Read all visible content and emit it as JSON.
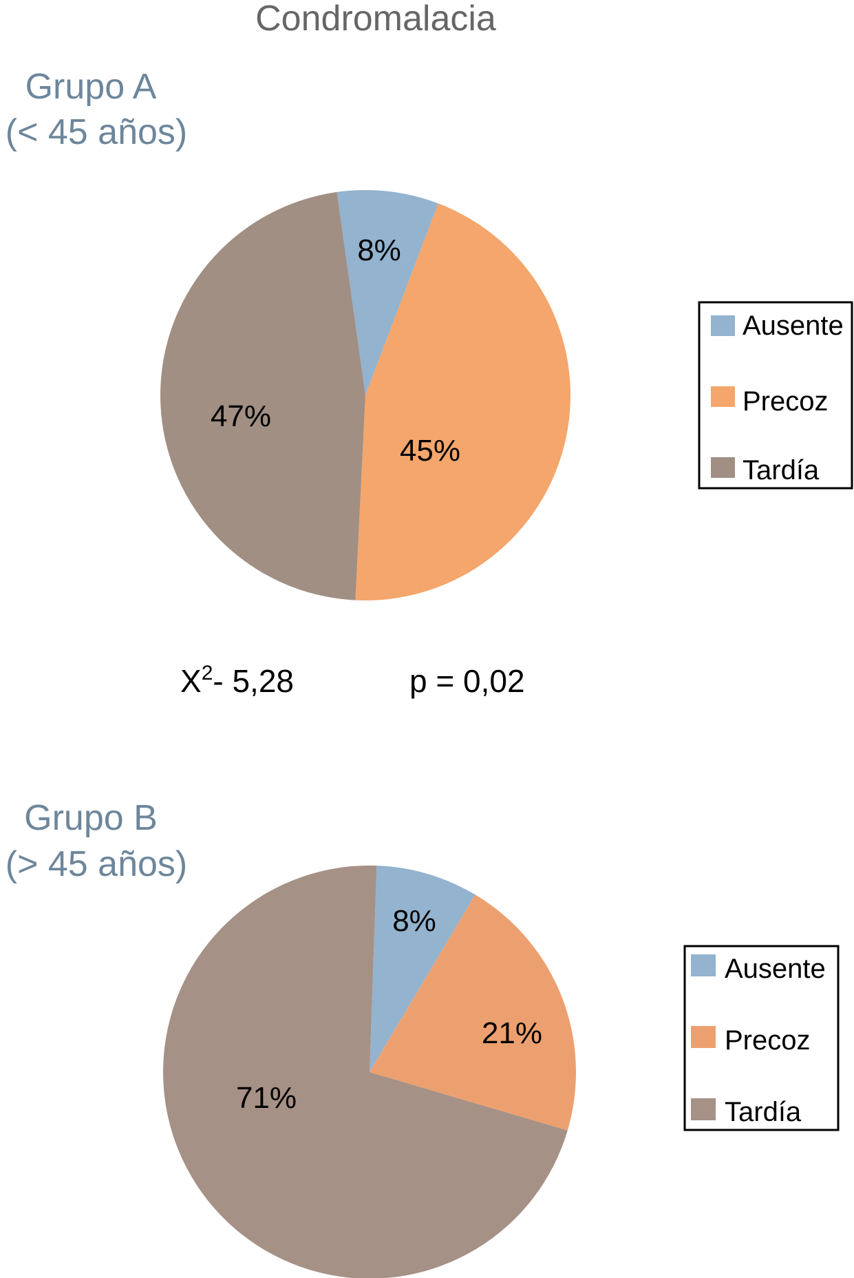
{
  "title": "Condromalacia",
  "colors": {
    "title": "#666666",
    "group_label": "#6d869b",
    "text": "#000000",
    "ausente": "#93b3cf",
    "precoz": "#f4a66c",
    "precoz_b": "#eda06f",
    "tardia": "#a18f83",
    "tardia_b": "#a69186"
  },
  "stats": {
    "chi_prefix": "X",
    "chi_sup": "2",
    "chi_value": "- 5,28",
    "p_value": "p = 0,02"
  },
  "chart_data": [
    {
      "type": "pie",
      "group_label": "Grupo A",
      "group_sub": "(< 45 años)",
      "legend_placement": "right",
      "categories": [
        "Ausente",
        "Precoz",
        "Tardía"
      ],
      "values": [
        8,
        45,
        47
      ],
      "labels": [
        "8%",
        "45%",
        "47%"
      ],
      "colors": [
        "#93b3cf",
        "#f4a66c",
        "#a18f83"
      ]
    },
    {
      "type": "pie",
      "group_label": "Grupo B",
      "group_sub": "(> 45 años)",
      "legend_placement": "right",
      "categories": [
        "Ausente",
        "Precoz",
        "Tardía"
      ],
      "values": [
        8,
        21,
        71
      ],
      "labels": [
        "8%",
        "21%",
        "71%"
      ],
      "colors": [
        "#93b3cf",
        "#eda06f",
        "#a69186"
      ]
    }
  ]
}
